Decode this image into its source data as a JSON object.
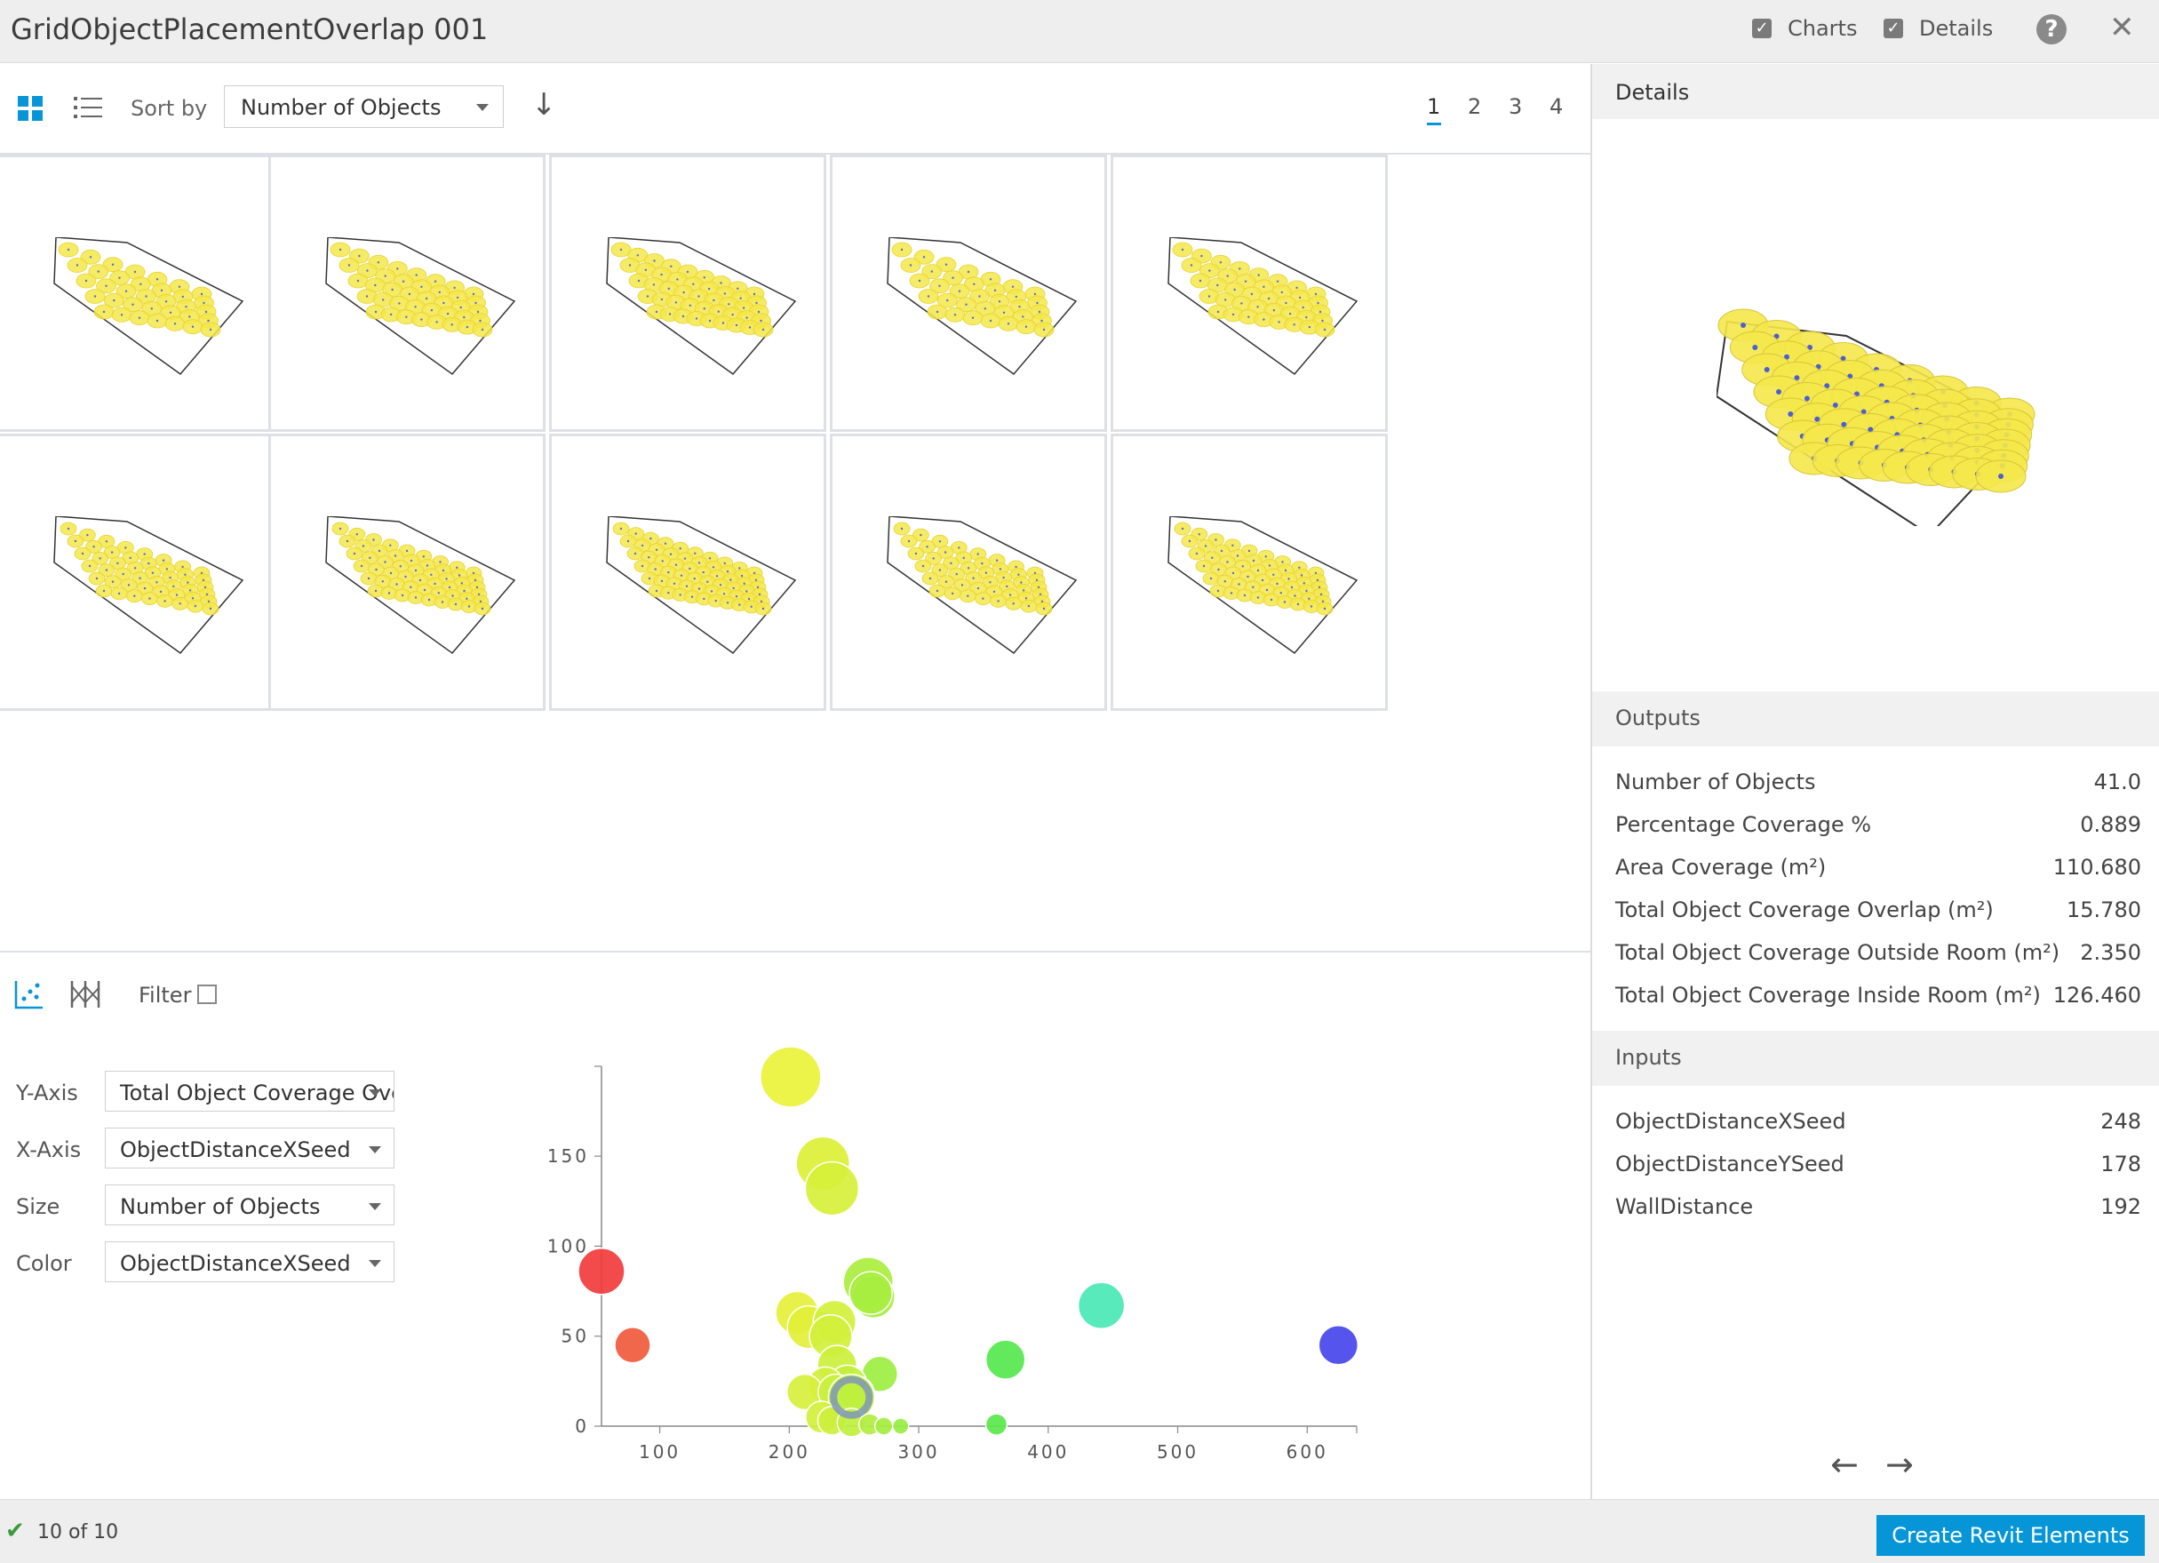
{
  "title": "GridObjectPlacementOverlap 001",
  "titlebar": {
    "charts_label": "Charts",
    "details_label": "Details",
    "charts_checked": true,
    "details_checked": true,
    "help_glyph": "?",
    "close_glyph": "✕"
  },
  "toolbar": {
    "sort_label": "Sort by",
    "sort_value": "Number of Objects",
    "sort_direction_glyph": "↓",
    "pages": [
      "1",
      "2",
      "3",
      "4"
    ],
    "active_page": "1"
  },
  "grid": {
    "thumbnail_count": 10
  },
  "details": {
    "header": "Details",
    "outputs_header": "Outputs",
    "outputs": [
      {
        "label": "Number of Objects",
        "value": "41.0"
      },
      {
        "label": "Percentage Coverage %",
        "value": "0.889"
      },
      {
        "label": "Area Coverage (m²)",
        "value": "110.680"
      },
      {
        "label": "Total Object Coverage Overlap (m²)",
        "value": "15.780"
      },
      {
        "label": "Total Object Coverage Outside Room (m²)",
        "value": "2.350"
      },
      {
        "label": "Total Object Coverage Inside Room (m²)",
        "value": "126.460"
      }
    ],
    "inputs_header": "Inputs",
    "inputs": [
      {
        "label": "ObjectDistanceXSeed",
        "value": "248"
      },
      {
        "label": "ObjectDistanceYSeed",
        "value": "178"
      },
      {
        "label": "WallDistance",
        "value": "192"
      }
    ],
    "prev_glyph": "←",
    "next_glyph": "→"
  },
  "chart_controls": {
    "filter_label": "Filter",
    "y_axis_label": "Y-Axis",
    "y_axis_value": "Total Object Coverage Ove",
    "x_axis_label": "X-Axis",
    "x_axis_value": "ObjectDistanceXSeed",
    "size_label": "Size",
    "size_value": "Number of Objects",
    "color_label": "Color",
    "color_value": "ObjectDistanceXSeed"
  },
  "chart_data": {
    "type": "scatter",
    "title": "",
    "xlabel": "ObjectDistanceXSeed",
    "ylabel": "Total Object Coverage Overlap",
    "xlim": [
      55,
      630
    ],
    "ylim": [
      0,
      195
    ],
    "xticks": [
      100,
      200,
      300,
      400,
      500,
      600
    ],
    "yticks": [
      0,
      50,
      100,
      150
    ],
    "grid": false,
    "points": [
      {
        "x": 201,
        "y": 194,
        "size": 34,
        "color": "#eaf23a"
      },
      {
        "x": 226,
        "y": 146,
        "size": 30,
        "color": "#dcf036"
      },
      {
        "x": 233,
        "y": 132,
        "size": 30,
        "color": "#d6f038"
      },
      {
        "x": 55,
        "y": 86,
        "size": 26,
        "color": "#f23c3c"
      },
      {
        "x": 79,
        "y": 45,
        "size": 20,
        "color": "#f05a3c"
      },
      {
        "x": 206,
        "y": 63,
        "size": 24,
        "color": "#e6f03a"
      },
      {
        "x": 215,
        "y": 55,
        "size": 24,
        "color": "#e2f03a"
      },
      {
        "x": 235,
        "y": 58,
        "size": 24,
        "color": "#d4f03c"
      },
      {
        "x": 232,
        "y": 50,
        "size": 24,
        "color": "#d2f03c"
      },
      {
        "x": 261,
        "y": 80,
        "size": 28,
        "color": "#aaee3e"
      },
      {
        "x": 265,
        "y": 72,
        "size": 24,
        "color": "#a6ee40"
      },
      {
        "x": 263,
        "y": 74,
        "size": 24,
        "color": "#a8ee40"
      },
      {
        "x": 237,
        "y": 34,
        "size": 22,
        "color": "#ccf03c"
      },
      {
        "x": 270,
        "y": 29,
        "size": 20,
        "color": "#9eee42"
      },
      {
        "x": 245,
        "y": 23,
        "size": 22,
        "color": "#c2f03c"
      },
      {
        "x": 228,
        "y": 23,
        "size": 20,
        "color": "#d0f03c"
      },
      {
        "x": 212,
        "y": 19,
        "size": 20,
        "color": "#d8f03c"
      },
      {
        "x": 236,
        "y": 19,
        "size": 20,
        "color": "#c8f03c"
      },
      {
        "x": 252,
        "y": 18,
        "size": 20,
        "color": "#bcf03e"
      },
      {
        "x": 248,
        "y": 16,
        "size": 26,
        "color": "#c0f03e"
      },
      {
        "x": 225,
        "y": 5,
        "size": 18,
        "color": "#d2f03c"
      },
      {
        "x": 233,
        "y": 3,
        "size": 16,
        "color": "#ccf03c"
      },
      {
        "x": 248,
        "y": 2,
        "size": 16,
        "color": "#c0f03e"
      },
      {
        "x": 262,
        "y": 1,
        "size": 12,
        "color": "#b0ee40"
      },
      {
        "x": 273,
        "y": 0,
        "size": 10,
        "color": "#a4ee40"
      },
      {
        "x": 286,
        "y": 0,
        "size": 9,
        "color": "#98ee42"
      },
      {
        "x": 360,
        "y": 1,
        "size": 12,
        "color": "#5ae84c"
      },
      {
        "x": 367,
        "y": 37,
        "size": 22,
        "color": "#56e84e"
      },
      {
        "x": 441,
        "y": 67,
        "size": 26,
        "color": "#4ae8b4"
      },
      {
        "x": 624,
        "y": 45,
        "size": 22,
        "color": "#4646ec"
      }
    ],
    "selected_point": {
      "x": 248,
      "y": 16
    }
  },
  "status": {
    "check_glyph": "✔",
    "count_text": "10 of 10",
    "create_button": "Create Revit Elements"
  },
  "colors": {
    "accent": "#0696d7",
    "thumbnail_fill": "#f5e84a",
    "panel_bg": "#eeeeee"
  }
}
